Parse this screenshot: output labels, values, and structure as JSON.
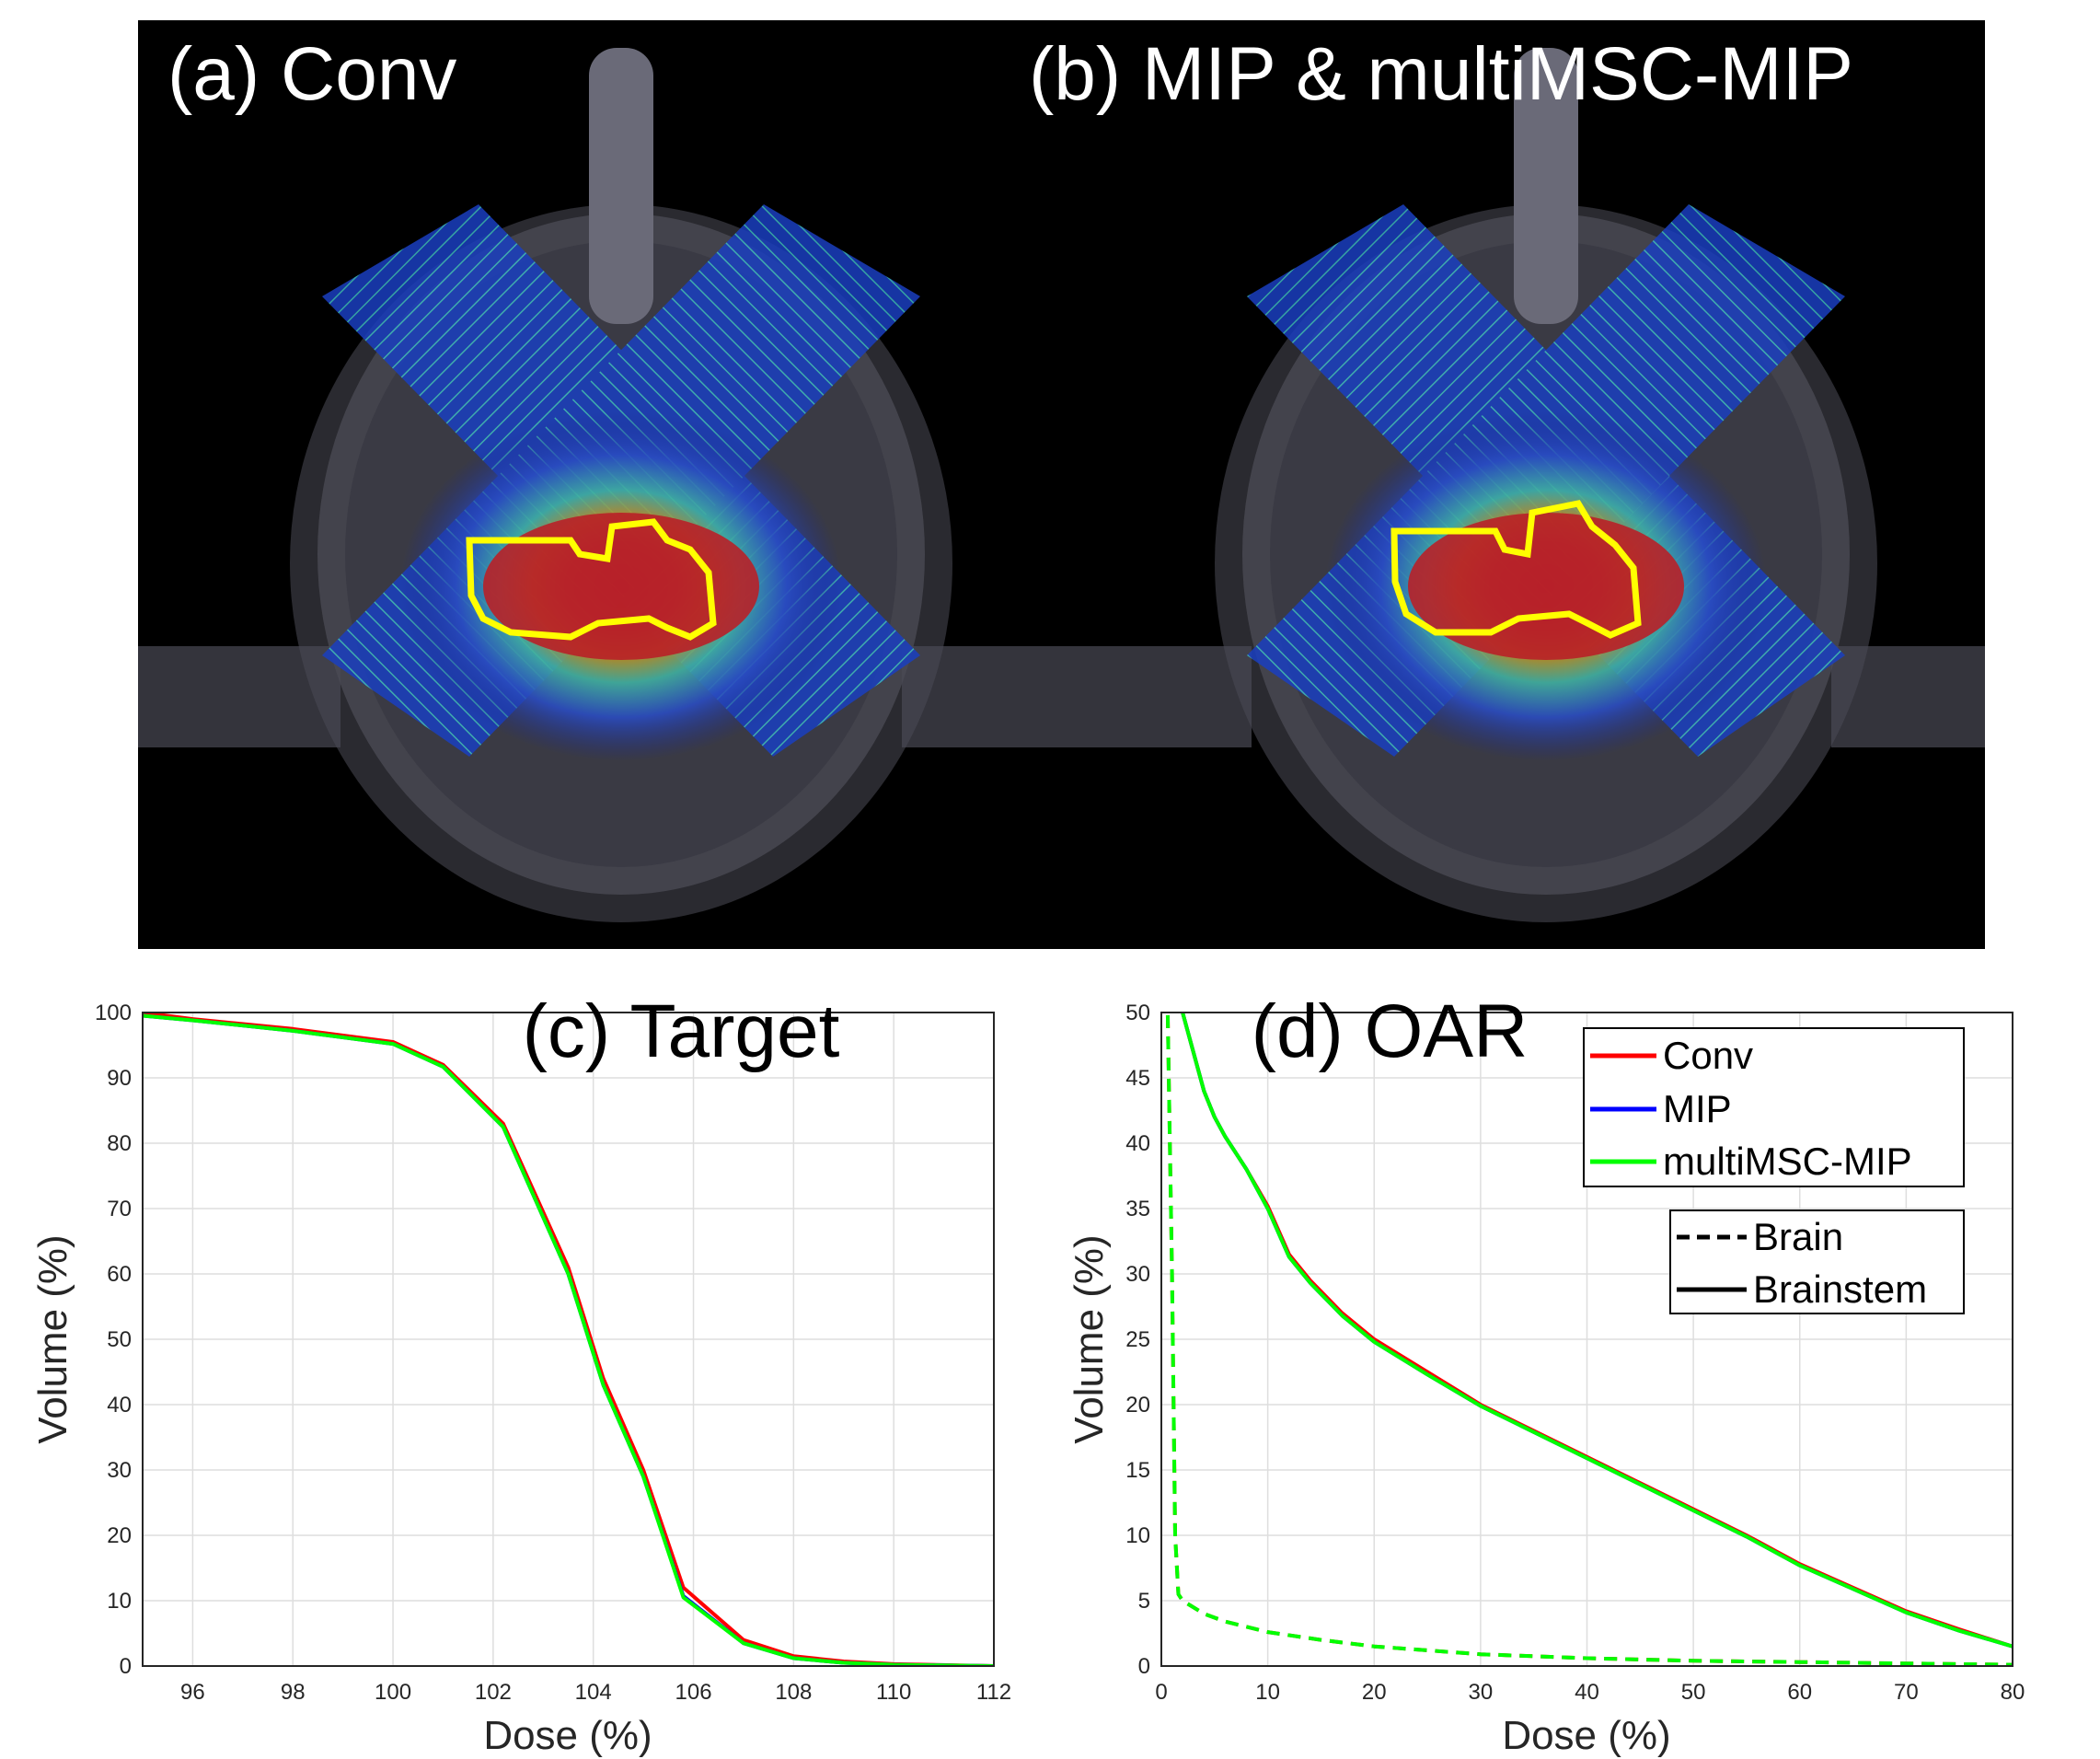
{
  "panels": {
    "a": {
      "label": "(a) Conv"
    },
    "b": {
      "label": "(b) MIP & multiMSC-MIP"
    }
  },
  "colors": {
    "conv": "#ff0000",
    "mip": "#0000ff",
    "multimsc": "#00ff00",
    "target_contour": "#ffff00",
    "background": "#000000"
  },
  "chart_data": [
    {
      "type": "line",
      "title": "(c) Target",
      "xlabel": "Dose (%)",
      "ylabel": "Volume (%)",
      "xlim": [
        95,
        112
      ],
      "ylim": [
        0,
        100
      ],
      "xticks": [
        96,
        98,
        100,
        102,
        104,
        106,
        108,
        110,
        112
      ],
      "yticks": [
        0,
        10,
        20,
        30,
        40,
        50,
        60,
        70,
        80,
        90,
        100
      ],
      "grid": true,
      "series": [
        {
          "name": "Conv",
          "color": "#ff0000",
          "style": "solid",
          "x": [
            95,
            96,
            98,
            100,
            101,
            102.2,
            103.5,
            104.2,
            105,
            105.8,
            107,
            108,
            109,
            110,
            112
          ],
          "y": [
            100,
            99,
            97.5,
            95.5,
            92,
            83,
            61,
            44,
            30,
            12,
            4,
            1.5,
            0.7,
            0.3,
            0
          ]
        },
        {
          "name": "MIP",
          "color": "#0000ff",
          "style": "solid",
          "x": [
            95,
            96,
            98,
            100,
            101,
            102.2,
            103.5,
            104.2,
            105,
            105.8,
            107,
            108,
            109,
            110,
            112
          ],
          "y": [
            99.5,
            98.8,
            97.2,
            95.2,
            91.7,
            82.5,
            60,
            43,
            29,
            10.7,
            3.5,
            1.2,
            0.5,
            0.2,
            0
          ]
        },
        {
          "name": "multiMSC-MIP",
          "color": "#00ff00",
          "style": "solid",
          "x": [
            95,
            96,
            98,
            100,
            101,
            102.2,
            103.5,
            104.2,
            105,
            105.8,
            107,
            108,
            109,
            110,
            112
          ],
          "y": [
            99.5,
            98.8,
            97.2,
            95.2,
            91.7,
            82.5,
            60,
            43,
            29,
            10.5,
            3.5,
            1.2,
            0.5,
            0.2,
            0
          ]
        }
      ]
    },
    {
      "type": "line",
      "title": "(d) OAR",
      "xlabel": "Dose (%)",
      "ylabel": "Volume (%)",
      "xlim": [
        0,
        80
      ],
      "ylim": [
        0,
        50
      ],
      "xticks": [
        0,
        10,
        20,
        30,
        40,
        50,
        60,
        70,
        80
      ],
      "yticks": [
        0,
        5,
        10,
        15,
        20,
        25,
        30,
        35,
        40,
        45,
        50
      ],
      "grid": true,
      "legend": {
        "position": "top-right",
        "methods": [
          {
            "label": "Conv",
            "color": "#ff0000"
          },
          {
            "label": "MIP",
            "color": "#0000ff"
          },
          {
            "label": "multiMSC-MIP",
            "color": "#00ff00"
          }
        ],
        "structures": [
          {
            "label": "Brain",
            "style": "dashed"
          },
          {
            "label": "Brainstem",
            "style": "solid"
          }
        ]
      },
      "series": [
        {
          "structure": "Brainstem",
          "method": "Conv",
          "color": "#ff0000",
          "style": "solid",
          "x": [
            2,
            3,
            4,
            5,
            6,
            8,
            10,
            12,
            14,
            17,
            20,
            25,
            30,
            35,
            40,
            45,
            50,
            55,
            60,
            65,
            70,
            75,
            80
          ],
          "y": [
            50,
            47,
            44,
            42,
            40.5,
            38,
            35.2,
            31.5,
            29.5,
            27,
            25,
            22.5,
            20,
            18,
            16,
            14,
            12,
            10,
            7.8,
            6,
            4.2,
            2.8,
            1.5
          ]
        },
        {
          "structure": "Brainstem",
          "method": "MIP",
          "color": "#0000ff",
          "style": "solid",
          "x": [
            2,
            3,
            4,
            5,
            6,
            8,
            10,
            12,
            14,
            17,
            20,
            25,
            30,
            35,
            40,
            45,
            50,
            55,
            60,
            65,
            70,
            75,
            80
          ],
          "y": [
            50,
            47,
            44,
            42,
            40.5,
            38,
            35,
            31.3,
            29.3,
            26.8,
            24.8,
            22.3,
            19.9,
            17.9,
            15.9,
            13.9,
            11.9,
            9.9,
            7.7,
            5.9,
            4.1,
            2.7,
            1.5
          ]
        },
        {
          "structure": "Brainstem",
          "method": "multiMSC-MIP",
          "color": "#00ff00",
          "style": "solid",
          "x": [
            2,
            3,
            4,
            5,
            6,
            8,
            10,
            12,
            14,
            17,
            20,
            25,
            30,
            35,
            40,
            45,
            50,
            55,
            60,
            65,
            70,
            75,
            80
          ],
          "y": [
            50,
            47,
            44,
            42,
            40.5,
            38,
            35,
            31.3,
            29.3,
            26.8,
            24.8,
            22.3,
            19.9,
            17.9,
            15.9,
            13.9,
            11.9,
            9.9,
            7.7,
            5.9,
            4.1,
            2.7,
            1.5
          ]
        },
        {
          "structure": "Brain",
          "method": "Conv",
          "color": "#ff0000",
          "style": "dashed",
          "x": [
            0,
            0.6,
            1,
            1.3,
            1.6,
            2,
            4,
            6,
            10,
            15,
            20,
            30,
            40,
            50,
            60,
            70,
            80
          ],
          "y": [
            100,
            50,
            30,
            10,
            5.5,
            5,
            4,
            3.4,
            2.6,
            2,
            1.5,
            0.9,
            0.6,
            0.4,
            0.3,
            0.2,
            0.1
          ]
        },
        {
          "structure": "Brain",
          "method": "multiMSC-MIP",
          "color": "#00ff00",
          "style": "dashed",
          "x": [
            0,
            0.6,
            1,
            1.3,
            1.6,
            2,
            4,
            6,
            10,
            15,
            20,
            30,
            40,
            50,
            60,
            70,
            80
          ],
          "y": [
            100,
            50,
            30,
            10,
            5.5,
            5,
            4,
            3.4,
            2.6,
            2,
            1.5,
            0.9,
            0.6,
            0.4,
            0.3,
            0.2,
            0.1
          ]
        }
      ]
    }
  ]
}
